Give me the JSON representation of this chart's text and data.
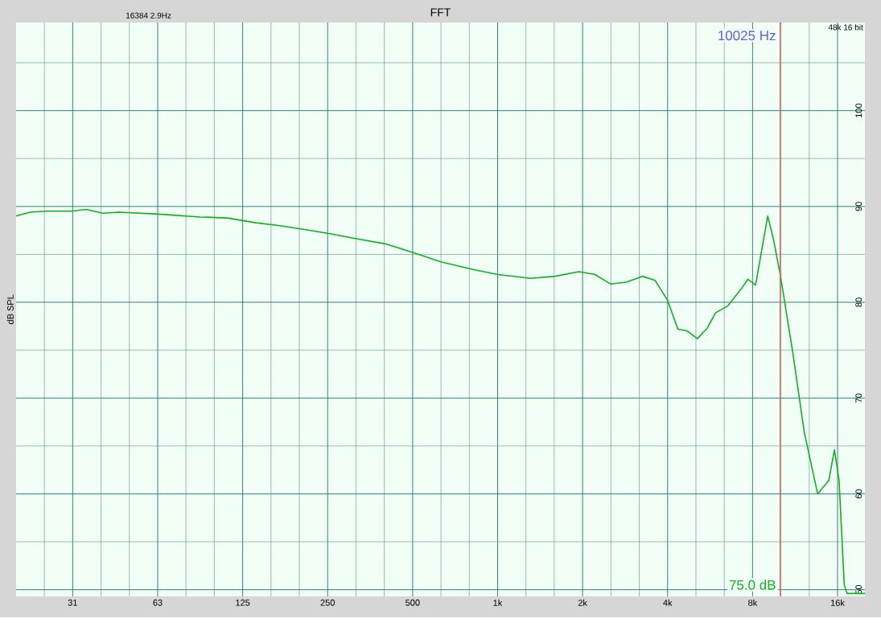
{
  "chart_data": {
    "type": "line",
    "title": "FFT",
    "ylabel": "dB SPL",
    "annotations": [
      "16384  2.9Hz",
      "48k 16 bit",
      "75.0 dB"
    ],
    "log": "x",
    "grid": true,
    "xlim": [
      19.7,
      20000
    ],
    "ylim": [
      49.3,
      109.2
    ],
    "xticks": [
      {
        "value": 24.8,
        "label": null
      },
      {
        "value": 31.25,
        "label": "31"
      },
      {
        "value": 39.4,
        "label": null
      },
      {
        "value": 49.6,
        "label": null
      },
      {
        "value": 62.5,
        "label": "63"
      },
      {
        "value": 78.7,
        "label": null
      },
      {
        "value": 99.2,
        "label": null
      },
      {
        "value": 125,
        "label": "125"
      },
      {
        "value": 157.5,
        "label": null
      },
      {
        "value": 198.4,
        "label": null
      },
      {
        "value": 250,
        "label": "250"
      },
      {
        "value": 315,
        "label": null
      },
      {
        "value": 397,
        "label": null
      },
      {
        "value": 500,
        "label": "500"
      },
      {
        "value": 630,
        "label": null
      },
      {
        "value": 794,
        "label": null
      },
      {
        "value": 1000,
        "label": "1k"
      },
      {
        "value": 1260,
        "label": null
      },
      {
        "value": 1587,
        "label": null
      },
      {
        "value": 2000,
        "label": "2k"
      },
      {
        "value": 2520,
        "label": null
      },
      {
        "value": 3175,
        "label": null
      },
      {
        "value": 4000,
        "label": "4k"
      },
      {
        "value": 5040,
        "label": null
      },
      {
        "value": 6350,
        "label": null
      },
      {
        "value": 8000,
        "label": "8k"
      },
      {
        "value": 10080,
        "label": null
      },
      {
        "value": 12700,
        "label": null
      },
      {
        "value": 16000,
        "label": "16k"
      }
    ],
    "yticks": [
      50,
      {
        "value": 55,
        "label": null
      },
      60,
      {
        "value": 65,
        "label": null
      },
      70,
      {
        "value": 75,
        "label": null
      },
      80,
      {
        "value": 85,
        "label": null
      },
      90,
      {
        "value": 95,
        "label": null
      },
      100,
      {
        "value": 105,
        "label": null
      }
    ],
    "ref_lines": [
      {
        "axis": "x",
        "value": 10025,
        "label": "10025 Hz",
        "color": "#e06060"
      }
    ],
    "series": [
      {
        "color": "#10b020",
        "x": [
          19.7,
          22.1,
          25.2,
          31,
          34.9,
          39.9,
          45.5,
          63,
          88,
          110,
          139,
          169,
          207,
          250,
          307,
          400,
          500,
          633,
          824,
          1000,
          1306,
          1592,
          1938,
          2212,
          2512,
          2859,
          3270,
          3610,
          4000,
          4350,
          4700,
          5100,
          5530,
          5920,
          6530,
          7300,
          7700,
          8200,
          9050,
          9500,
          10050,
          11100,
          12200,
          13600,
          14900,
          15600,
          16200,
          16900,
          17300,
          20000
        ],
        "values": [
          89.0,
          89.4,
          89.5,
          89.5,
          89.7,
          89.3,
          89.4,
          89.2,
          88.9,
          88.8,
          88.3,
          88.0,
          87.6,
          87.2,
          86.7,
          86.1,
          85.2,
          84.2,
          83.4,
          82.9,
          82.5,
          82.7,
          83.2,
          82.9,
          81.9,
          82.1,
          82.7,
          82.3,
          80.2,
          77.2,
          77.0,
          76.2,
          77.3,
          78.9,
          79.6,
          81.4,
          82.4,
          81.8,
          89.0,
          86.5,
          82.7,
          74.8,
          66.4,
          60.0,
          61.4,
          64.6,
          61.4,
          50.5,
          49.6,
          49.6
        ]
      }
    ]
  }
}
